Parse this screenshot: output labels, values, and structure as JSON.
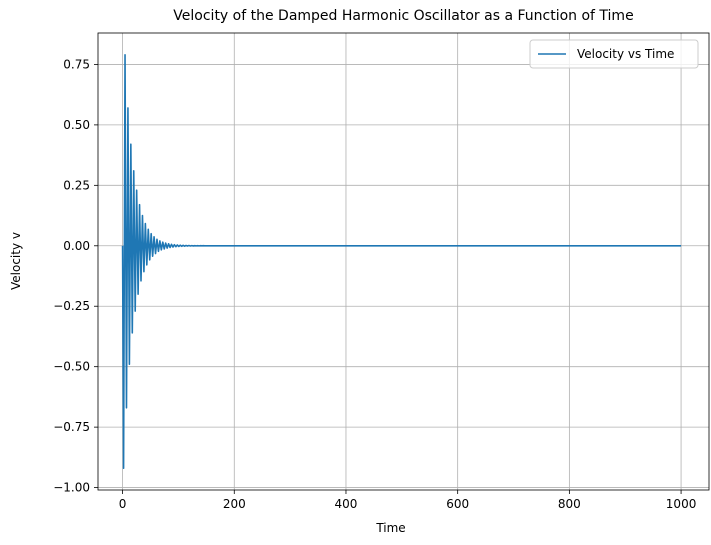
{
  "chart_data": {
    "type": "line",
    "title": "Velocity of the Damped Harmonic Oscillator as a Function of Time",
    "xlabel": "Time",
    "ylabel": "Velocity v",
    "xlim": [
      -44,
      1050
    ],
    "ylim": [
      -1.01,
      0.88
    ],
    "xticks": [
      0,
      200,
      400,
      600,
      800,
      1000
    ],
    "xtick_labels": [
      "0",
      "200",
      "400",
      "600",
      "800",
      "1000"
    ],
    "yticks": [
      -1.0,
      -0.75,
      -0.5,
      -0.25,
      0.0,
      0.25,
      0.5,
      0.75
    ],
    "ytick_labels": [
      "−1.00",
      "−0.75",
      "−0.50",
      "−0.25",
      "0.00",
      "0.25",
      "0.50",
      "0.75"
    ],
    "grid": true,
    "legend_position": "top-right",
    "series": [
      {
        "name": "Velocity vs Time",
        "color": "#1f77b4",
        "x": [
          0,
          1.8,
          4.4,
          7.0,
          9.6,
          12.2,
          14.8,
          17.4,
          20.0,
          22.6,
          25.2,
          27.8,
          30.4,
          33.0,
          35.6,
          38.2,
          40.8,
          43.4,
          46.0,
          48.6,
          51.2,
          53.8,
          56.4,
          59.0,
          61.6,
          64.2,
          66.8,
          69.4,
          72.0,
          74.6,
          77.2,
          79.8,
          82.4,
          85.0,
          87.6,
          90.2,
          92.8,
          95.4,
          98.0,
          100.6,
          103.2,
          105.8,
          108.4,
          111.0,
          113.6,
          116.2,
          118.8,
          121.4,
          124.0,
          126.6,
          129.2,
          131.8,
          134.4,
          137.0,
          139.6,
          142.2,
          144.8,
          147.4,
          150.0,
          200,
          1000
        ],
        "y": [
          0.0,
          -0.92,
          0.79,
          -0.67,
          0.57,
          -0.49,
          0.42,
          -0.36,
          0.31,
          -0.27,
          0.23,
          -0.2,
          0.17,
          -0.145,
          0.125,
          -0.107,
          0.092,
          -0.079,
          0.068,
          -0.058,
          0.05,
          -0.043,
          0.037,
          -0.032,
          0.027,
          -0.023,
          0.02,
          -0.017,
          0.015,
          -0.013,
          0.011,
          -0.0095,
          0.0082,
          -0.007,
          0.006,
          -0.0052,
          0.0045,
          -0.0038,
          0.0033,
          -0.0028,
          0.0024,
          -0.0021,
          0.0018,
          -0.0015,
          0.0013,
          -0.0011,
          0.001,
          -0.0008,
          0.0007,
          -0.0006,
          0.0005,
          -0.0004,
          0.0004,
          -0.0003,
          0.0003,
          -0.0002,
          0.0002,
          -0.0002,
          0.0001,
          0.0,
          0.0
        ]
      }
    ]
  }
}
